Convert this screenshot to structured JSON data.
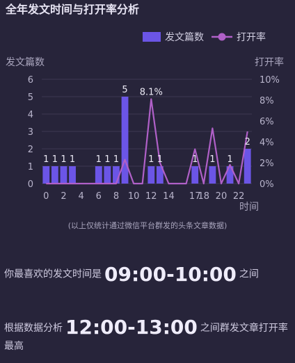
{
  "header": {
    "title": "全年发文时间与打开率分析"
  },
  "legend": {
    "bar_label": "发文篇数",
    "line_label": "打开率"
  },
  "axes": {
    "left_title": "发文篇数",
    "right_title": "打开率",
    "x_title": "时间"
  },
  "colors": {
    "bar": "#6b55e6",
    "line": "#b060c8",
    "grid": "#3c3952",
    "text": "#b9b5cc"
  },
  "chart_data": {
    "type": "bar",
    "title": "全年发文时间与打开率分析",
    "xlabel": "时间",
    "ylabel": "发文篇数",
    "y2label": "打开率",
    "x": [
      0,
      1,
      2,
      3,
      4,
      5,
      6,
      7,
      8,
      9,
      10,
      11,
      12,
      13,
      14,
      15,
      16,
      17,
      18,
      19,
      20,
      21,
      22,
      23
    ],
    "x_ticks": [
      "0",
      "2",
      "4",
      "6",
      "8",
      "10",
      "12",
      "14",
      "17",
      "18",
      "20",
      "22"
    ],
    "ylim": [
      0,
      6
    ],
    "y2lim": [
      0,
      10
    ],
    "y2_ticks": [
      "0%",
      "2%",
      "4%",
      "6%",
      "8%",
      "10%"
    ],
    "series": [
      {
        "name": "发文篇数",
        "axis": "left",
        "values": [
          1,
          1,
          1,
          1,
          0,
          0,
          1,
          1,
          1,
          5,
          0,
          0,
          1,
          1,
          0,
          0,
          0,
          1,
          0,
          1,
          0,
          1,
          0,
          2
        ]
      },
      {
        "name": "打开率",
        "axis": "right",
        "values": [
          0,
          0,
          0,
          0,
          0,
          0,
          0,
          0,
          0,
          2.3,
          0,
          0,
          8.1,
          2.0,
          0,
          0,
          0,
          3.3,
          0,
          5.3,
          0,
          1.8,
          0,
          5.0
        ]
      }
    ],
    "data_labels": [
      {
        "x": 0,
        "text": "1"
      },
      {
        "x": 1,
        "text": "1"
      },
      {
        "x": 2,
        "text": "1"
      },
      {
        "x": 3,
        "text": "1"
      },
      {
        "x": 6,
        "text": "1"
      },
      {
        "x": 7,
        "text": "1"
      },
      {
        "x": 8,
        "text": "1"
      },
      {
        "x": 9,
        "text": "5"
      },
      {
        "x": 12,
        "text": "8.1%"
      },
      {
        "x": 12,
        "text": "1"
      },
      {
        "x": 13,
        "text": "1"
      },
      {
        "x": 17,
        "text": "1"
      },
      {
        "x": 19,
        "text": "1"
      },
      {
        "x": 21,
        "text": "1"
      },
      {
        "x": 23,
        "text": "2"
      }
    ]
  },
  "note": "(以上仅统计通过微信平台群发的头条文章数据)",
  "favorite": {
    "prefix": "你最喜欢的发文时间是",
    "time": "09:00-10:00",
    "suffix": "之间"
  },
  "best": {
    "prefix": "根据数据分析",
    "time": "12:00-13:00",
    "suffix": "之间群发文章打开率最高"
  }
}
